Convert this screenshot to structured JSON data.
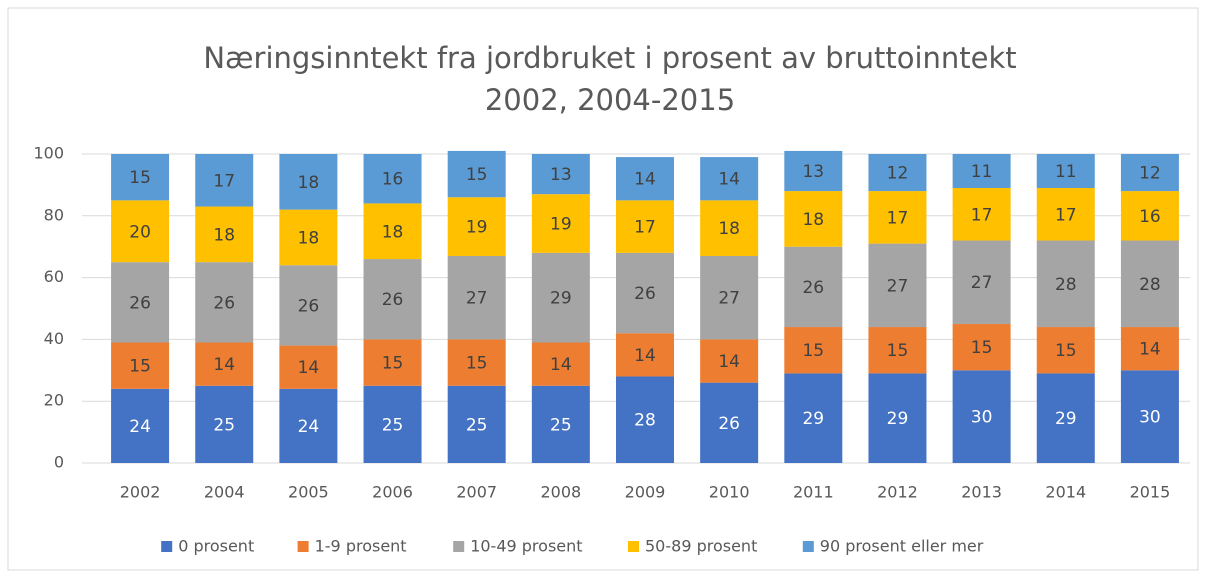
{
  "chart_data": {
    "type": "stacked_bar",
    "title": [
      "Næringsinntekt fra jordbruket i prosent av bruttoinntekt",
      "2002, 2004-2015"
    ],
    "categories": [
      "2002",
      "2004",
      "2005",
      "2006",
      "2007",
      "2008",
      "2009",
      "2010",
      "2011",
      "2012",
      "2013",
      "2014",
      "2015"
    ],
    "series": [
      {
        "name": "0 prosent",
        "color": "#4472c4",
        "values": [
          24,
          25,
          24,
          25,
          25,
          25,
          28,
          26,
          29,
          29,
          30,
          29,
          30
        ]
      },
      {
        "name": "1-9 prosent",
        "color": "#ed7d31",
        "values": [
          15,
          14,
          14,
          15,
          15,
          14,
          14,
          14,
          15,
          15,
          15,
          15,
          14
        ]
      },
      {
        "name": "10-49 prosent",
        "color": "#a5a5a5",
        "values": [
          26,
          26,
          26,
          26,
          27,
          29,
          26,
          27,
          26,
          27,
          27,
          28,
          28
        ]
      },
      {
        "name": "50-89 prosent",
        "color": "#ffc000",
        "values": [
          20,
          18,
          18,
          18,
          19,
          19,
          17,
          18,
          18,
          17,
          17,
          17,
          16
        ]
      },
      {
        "name": "90 prosent eller mer",
        "color": "#5b9bd5",
        "values": [
          15,
          17,
          18,
          16,
          15,
          13,
          14,
          14,
          13,
          12,
          11,
          11,
          12
        ]
      }
    ],
    "ylim": [
      0,
      100
    ],
    "yticks": [
      0,
      20,
      40,
      60,
      80,
      100
    ],
    "grid": true,
    "legend": "bottom"
  }
}
